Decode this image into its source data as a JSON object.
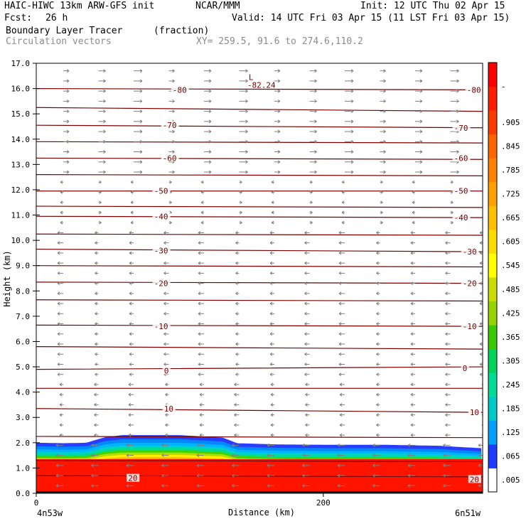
{
  "header": {
    "model_title": "HAIC-HIWC 13km ARW-GFS init",
    "org": "NCAR/MMM",
    "init": "Init: 12 UTC Thu 02 Apr 15",
    "fcst_label": "Fcst:",
    "fcst_value": "26 h",
    "valid": "Valid: 14 UTC Fri 03 Apr 15 (11 LST Fri 03 Apr 15)",
    "field_name": "Boundary Layer Tracer",
    "field_units": "(fraction)",
    "overlay_name": "Circulation vectors",
    "xy": "XY= 259.5, 91.6 to 274.6,110.2"
  },
  "chart_data": {
    "type": "heatmap",
    "ylabel": "Height (km)",
    "xlabel": "Distance (km)",
    "xlim": [
      0,
      311
    ],
    "ylim": [
      0,
      17
    ],
    "yticks": [
      "0.0",
      "1.0",
      "2.0",
      "3.0",
      "4.0",
      "5.0",
      "6.0",
      "7.0",
      "8.0",
      "9.0",
      "10.0",
      "11.0",
      "12.0",
      "13.0",
      "14.0",
      "15.0",
      "16.0",
      "17.0"
    ],
    "xticks": [
      {
        "value": 0,
        "label": "0"
      },
      {
        "value": 200,
        "label": "200"
      }
    ],
    "x_endpoints": {
      "left": "4n53w",
      "right": "6n51w"
    },
    "low_center": {
      "symbol": "L",
      "value": "-82.24",
      "x": 150,
      "y": 16.45
    },
    "temperature_labels": [
      {
        "text": "-80",
        "x": 95,
        "y": 15.95
      },
      {
        "text": "-80",
        "x": 300,
        "y": 15.95
      },
      {
        "text": "-70",
        "x": 88,
        "y": 14.55
      },
      {
        "text": "-70",
        "x": 291,
        "y": 14.45
      },
      {
        "text": "-60",
        "x": 88,
        "y": 13.25
      },
      {
        "text": "-60",
        "x": 291,
        "y": 13.25
      },
      {
        "text": "-50",
        "x": 82,
        "y": 11.95
      },
      {
        "text": "-50",
        "x": 291,
        "y": 11.95
      },
      {
        "text": "-40",
        "x": 82,
        "y": 10.95
      },
      {
        "text": "-40",
        "x": 291,
        "y": 10.9
      },
      {
        "text": "-30",
        "x": 82,
        "y": 9.6
      },
      {
        "text": "-30",
        "x": 297,
        "y": 9.55
      },
      {
        "text": "-20",
        "x": 82,
        "y": 8.3
      },
      {
        "text": "-20",
        "x": 297,
        "y": 8.3
      },
      {
        "text": "-10",
        "x": 82,
        "y": 6.6
      },
      {
        "text": "-10",
        "x": 297,
        "y": 6.6
      },
      {
        "text": "0",
        "x": 89,
        "y": 4.85
      },
      {
        "text": "0",
        "x": 297,
        "y": 4.95
      },
      {
        "text": "10",
        "x": 89,
        "y": 3.35
      },
      {
        "text": "10",
        "x": 302,
        "y": 3.2
      },
      {
        "text": "20",
        "x": 64,
        "y": 0.6
      },
      {
        "text": "20",
        "x": 302,
        "y": 0.55
      }
    ],
    "colorbar": {
      "labels": [
        ".005",
        ".065",
        ".125",
        ".185",
        ".245",
        ".305",
        ".365",
        ".425",
        ".485",
        ".545",
        ".605",
        ".665",
        ".725",
        ".785",
        ".845",
        ".905",
        "-"
      ],
      "colors": [
        "#ffffff",
        "#1e3cff",
        "#00a0ff",
        "#00c8c8",
        "#00dc96",
        "#00d25a",
        "#3cc800",
        "#96d200",
        "#c8dc00",
        "#ffff00",
        "#ffdc00",
        "#ffbe00",
        "#ffa000",
        "#ff8200",
        "#ff6400",
        "#ff3c00",
        "#ff1e00",
        "#ff0000"
      ]
    }
  }
}
